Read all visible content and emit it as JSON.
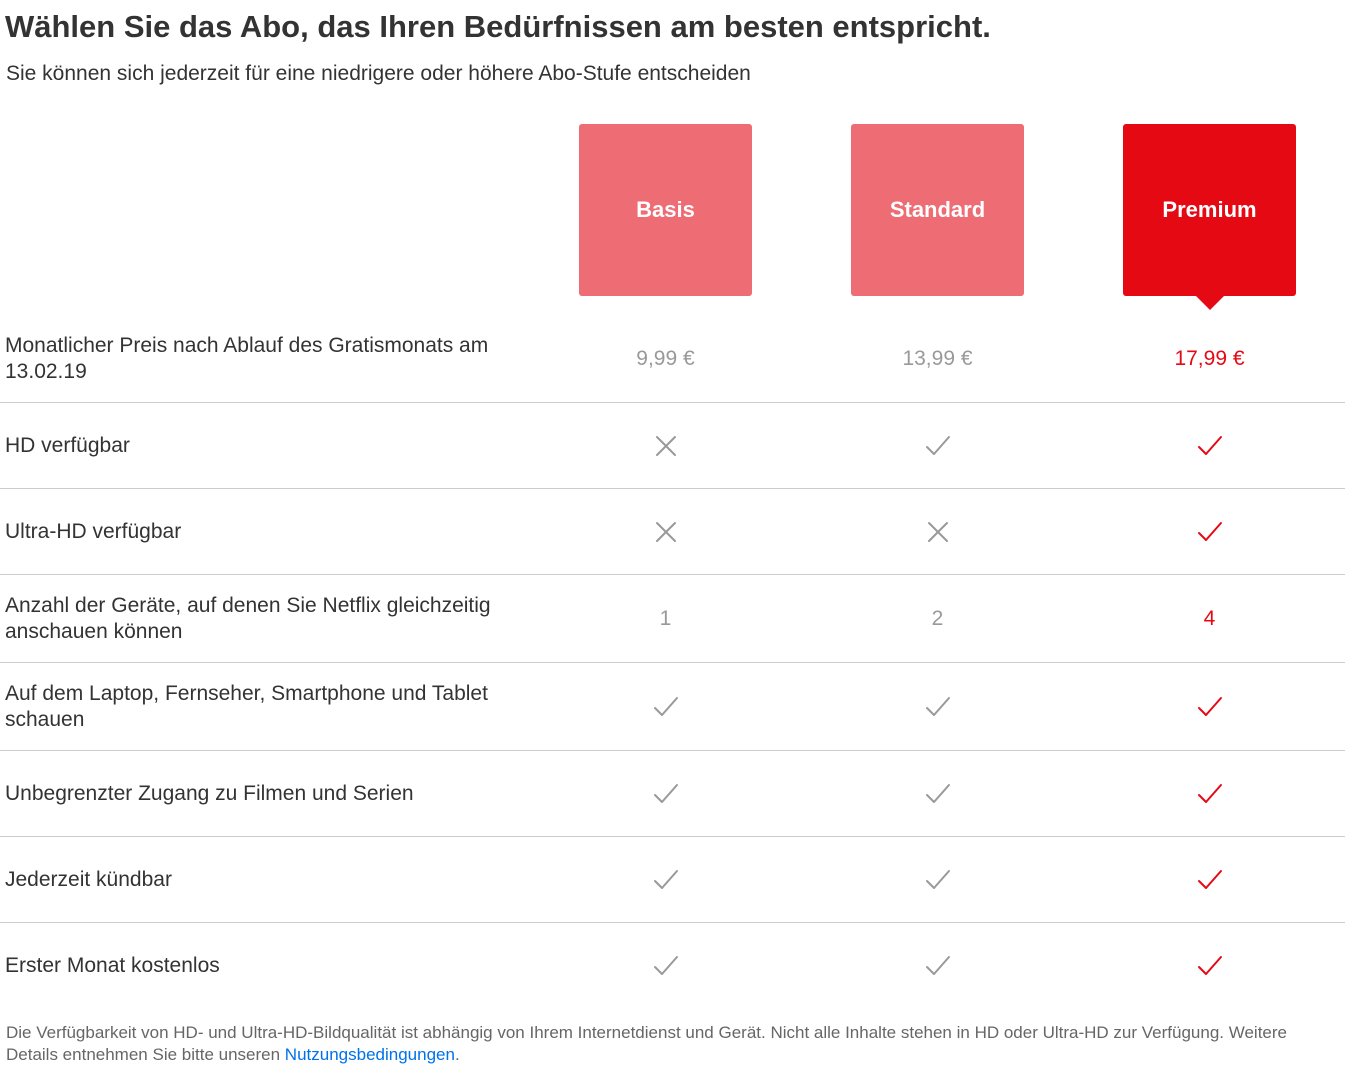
{
  "header": {
    "title": "Wählen Sie das Abo, das Ihren Bedürfnissen am besten entspricht.",
    "subtitle": "Sie können sich jederzeit für eine niedrigere oder höhere Abo-Stufe entscheiden"
  },
  "plans": [
    {
      "name": "Basis",
      "selected": false
    },
    {
      "name": "Standard",
      "selected": false
    },
    {
      "name": "Premium",
      "selected": true
    }
  ],
  "rows": {
    "price": {
      "label": "Monatlicher Preis nach Ablauf des Gratismonats am 13.02.19",
      "values": [
        "9,99 €",
        "13,99 €",
        "17,99 €"
      ]
    },
    "hd": {
      "label": "HD verfügbar",
      "values": [
        "cross-icon",
        "check-icon",
        "check-icon"
      ]
    },
    "uhd": {
      "label": "Ultra-HD verfügbar",
      "values": [
        "cross-icon",
        "cross-icon",
        "check-icon"
      ]
    },
    "screens": {
      "label": "Anzahl der Geräte, auf denen Sie Netflix gleichzeitig anschauen können",
      "values": [
        "1",
        "2",
        "4"
      ]
    },
    "devices": {
      "label": "Auf dem Laptop, Fernseher, Smartphone und Tablet schauen",
      "values": [
        "check-icon",
        "check-icon",
        "check-icon"
      ]
    },
    "unlimited": {
      "label": "Unbegrenzter Zugang zu Filmen und Serien",
      "values": [
        "check-icon",
        "check-icon",
        "check-icon"
      ]
    },
    "cancel": {
      "label": "Jederzeit kündbar",
      "values": [
        "check-icon",
        "check-icon",
        "check-icon"
      ]
    },
    "free_month": {
      "label": "Erster Monat kostenlos",
      "values": [
        "check-icon",
        "check-icon",
        "check-icon"
      ]
    }
  },
  "footnote": {
    "text": "Die Verfügbarkeit von HD- und Ultra-HD-Bildqualität ist abhängig von Ihrem Internetdienst und Gerät. Nicht alle Inhalte stehen in HD oder Ultra-HD zur Verfügung. Weitere Details entnehmen Sie bitte unseren ",
    "link": "Nutzungsbedingungen",
    "end": "."
  },
  "colors": {
    "selected": "#e50914",
    "unselected": "#ee6c73",
    "muted": "#999999",
    "link": "#0071eb"
  }
}
